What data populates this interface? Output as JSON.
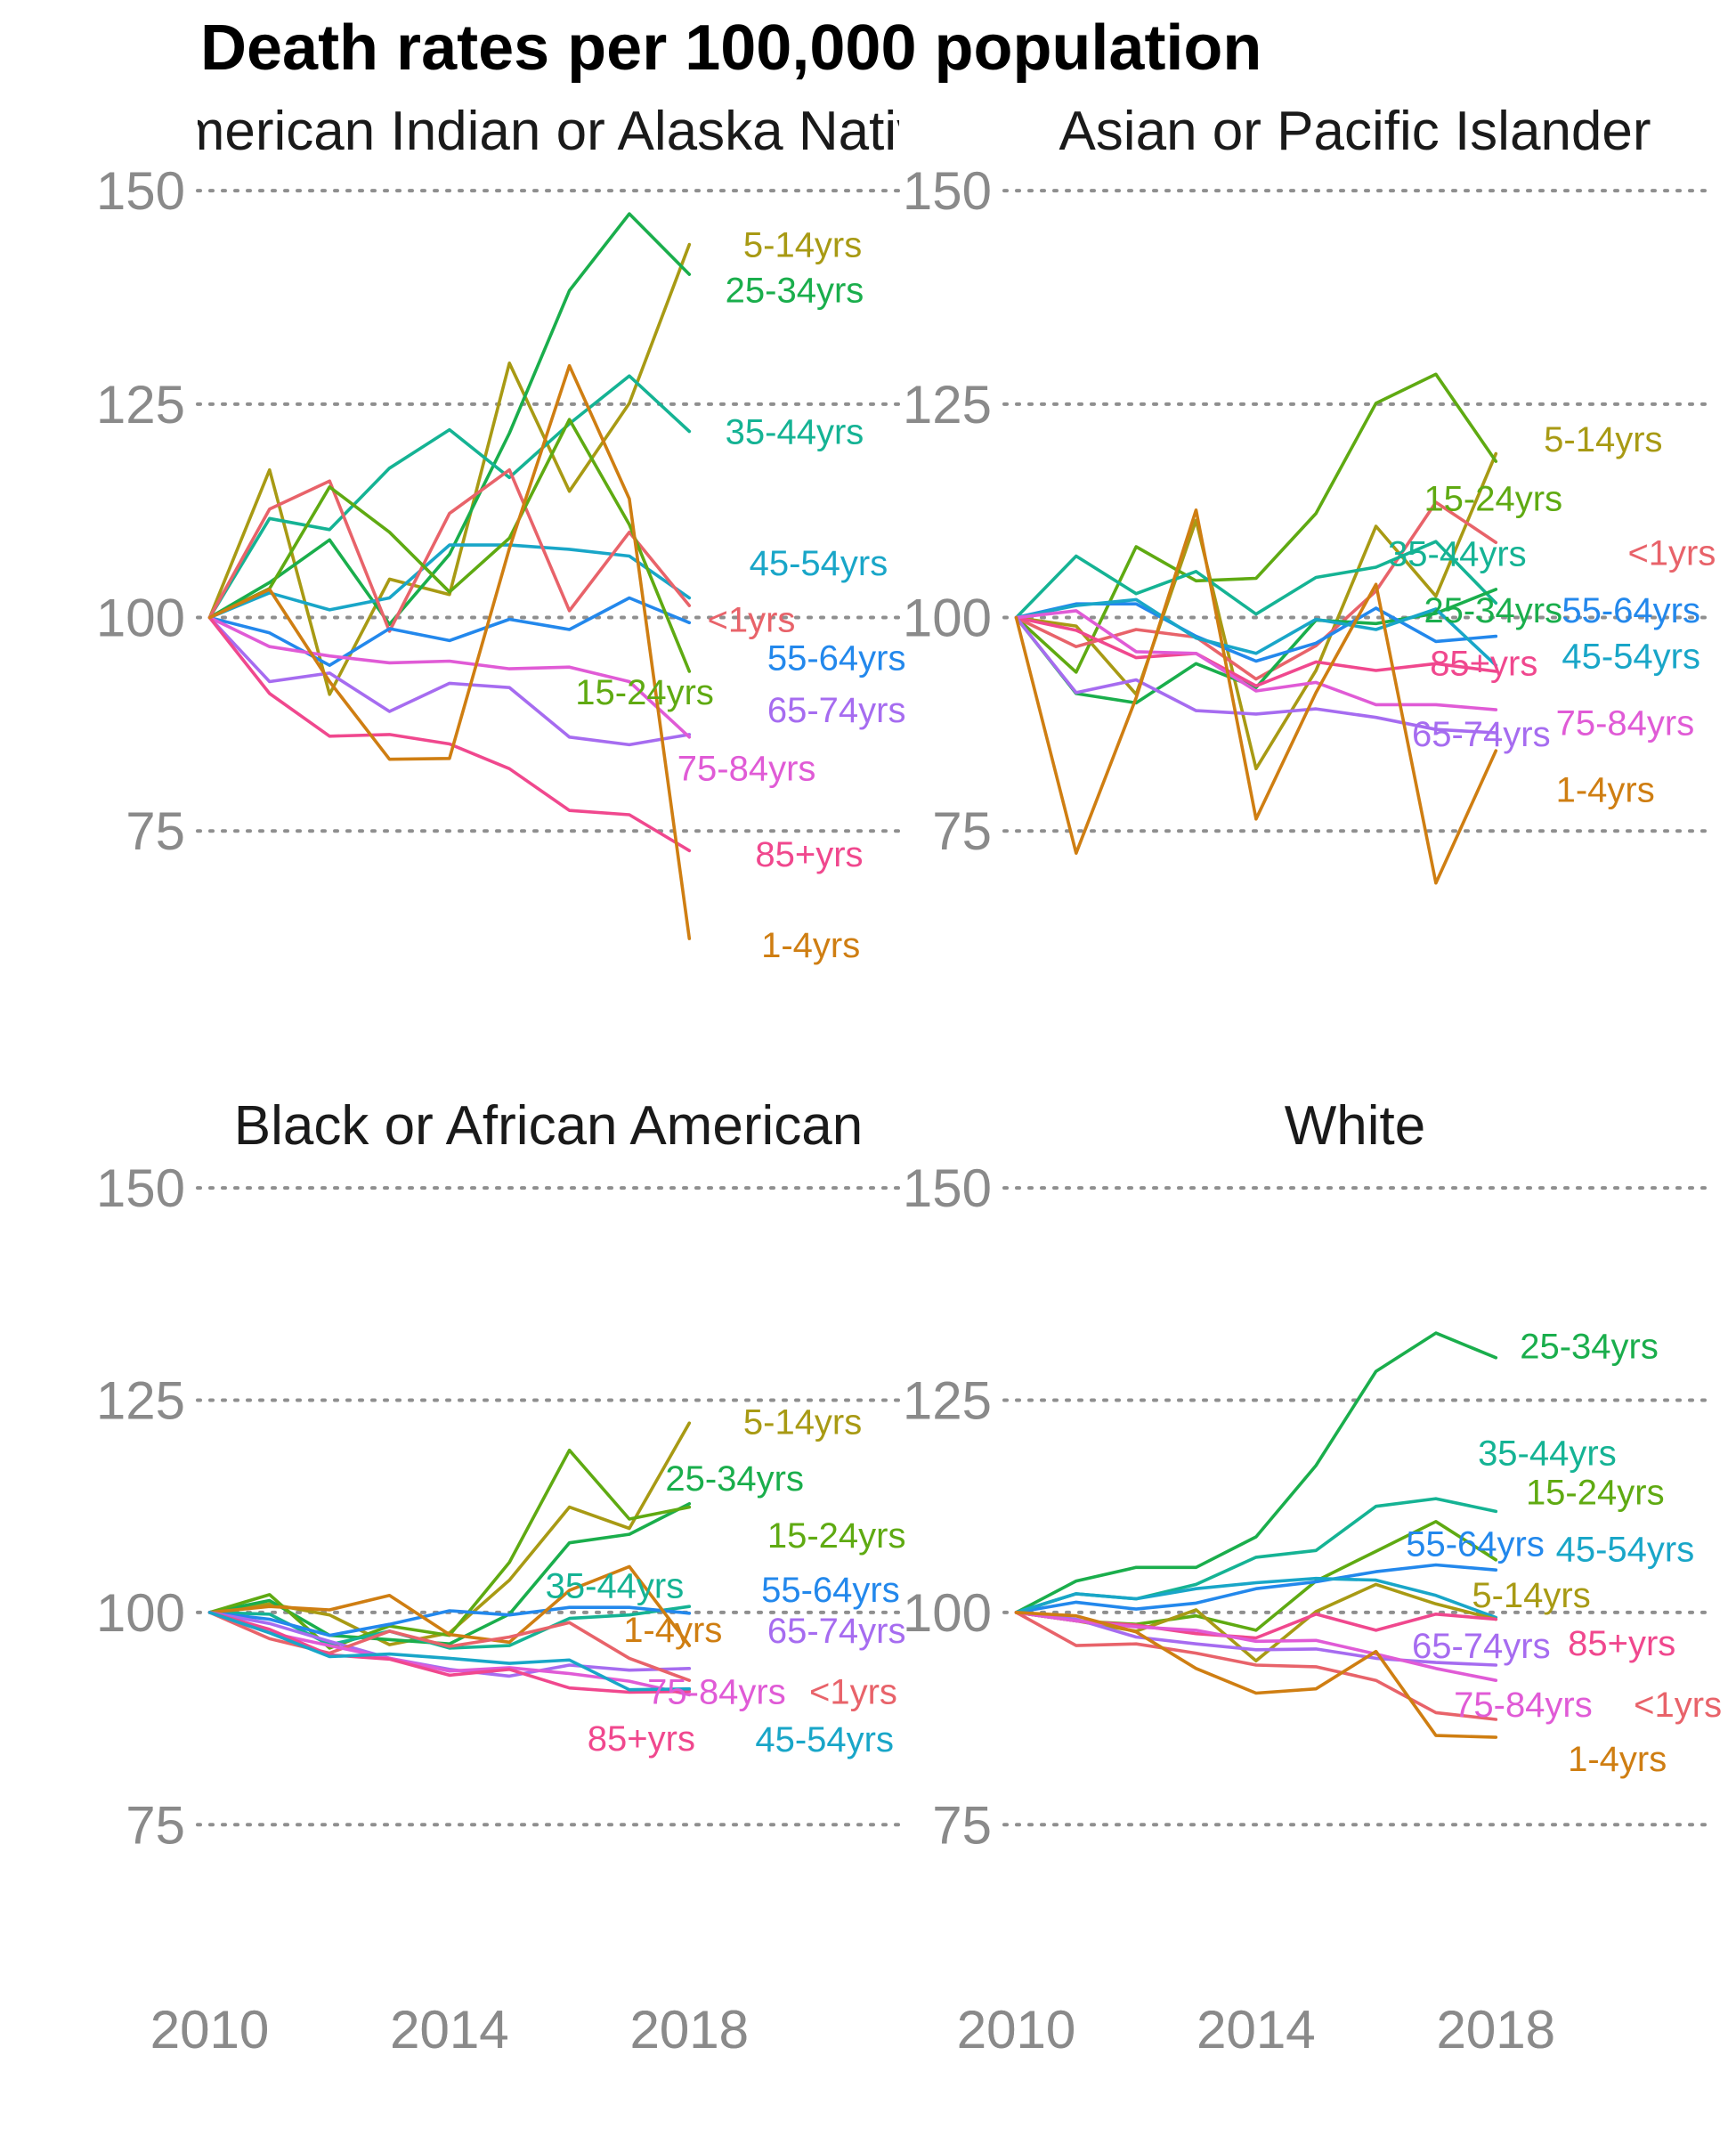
{
  "title": "Death rates per 100,000 population",
  "colors": {
    "<1yrs": "#E8636A",
    "1-4yrs": "#CF7E12",
    "5-14yrs": "#A89A14",
    "15-24yrs": "#5FAA12",
    "25-34yrs": "#1AAE4C",
    "35-44yrs": "#15B394",
    "45-54yrs": "#19A6C8",
    "55-64yrs": "#2388EC",
    "65-74yrs": "#A66CF0",
    "75-84yrs": "#E05BD6",
    "85+yrs": "#F0488E"
  },
  "chart_data": {
    "type": "line",
    "title": "Death rates per 100,000 population",
    "xlabel": "",
    "ylabel": "",
    "x": [
      2010,
      2011,
      2012,
      2013,
      2014,
      2015,
      2016,
      2017,
      2018
    ],
    "xticks": [
      "2010",
      "2014",
      "2018"
    ],
    "yticks": [
      "75",
      "100",
      "125",
      "150"
    ],
    "xlim": [
      2009.8,
      2021.5
    ],
    "ylim": [
      55,
      152
    ],
    "grid": "horizontal dotted",
    "legend": "none",
    "facets": [
      {
        "title": "American Indian or Alaska Native",
        "series": [
          {
            "name": "5-14yrs",
            "values": [
              100,
              117.3,
              91.0,
              104.5,
              102.7,
              129.8,
              114.8,
              125.1,
              143.7
            ]
          },
          {
            "name": "25-34yrs",
            "values": [
              100,
              104.1,
              109.1,
              99.2,
              107.4,
              121.6,
              138.3,
              147.3,
              140.2
            ]
          },
          {
            "name": "35-44yrs",
            "values": [
              100,
              111.6,
              110.3,
              117.5,
              122.0,
              116.4,
              122.7,
              128.3,
              121.8
            ]
          },
          {
            "name": "45-54yrs",
            "values": [
              100,
              102.9,
              100.9,
              102.3,
              108.5,
              108.5,
              108.0,
              107.2,
              102.3
            ]
          },
          {
            "name": "<1yrs",
            "values": [
              100,
              112.7,
              116.0,
              98.4,
              112.2,
              117.3,
              100.8,
              110.0,
              101.4
            ]
          },
          {
            "name": "55-64yrs",
            "values": [
              100,
              98.2,
              94.4,
              98.7,
              97.3,
              99.8,
              98.6,
              102.3,
              99.4
            ]
          },
          {
            "name": "15-24yrs",
            "values": [
              100,
              103.4,
              115.3,
              110.0,
              103.0,
              109.3,
              123.2,
              110.9,
              93.7
            ]
          },
          {
            "name": "65-74yrs",
            "values": [
              100,
              92.5,
              93.5,
              89.0,
              92.3,
              91.8,
              86.0,
              85.1,
              86.3
            ]
          },
          {
            "name": "75-84yrs",
            "values": [
              100,
              96.6,
              95.5,
              94.7,
              94.9,
              94.0,
              94.2,
              92.5,
              86.0
            ]
          },
          {
            "name": "85+yrs",
            "values": [
              100,
              91.1,
              86.1,
              86.3,
              85.2,
              82.3,
              77.4,
              76.9,
              72.7
            ]
          },
          {
            "name": "1-4yrs",
            "values": [
              100,
              103.3,
              92.5,
              83.4,
              83.5,
              108.1,
              129.5,
              113.9,
              62.4
            ]
          }
        ]
      },
      {
        "title": "Asian or Pacific Islander",
        "series": [
          {
            "name": "5-14yrs",
            "values": [
              100,
              99.0,
              91.0,
              111.4,
              82.3,
              93.8,
              110.7,
              102.5,
              119.2
            ]
          },
          {
            "name": "15-24yrs",
            "values": [
              100,
              93.6,
              108.3,
              104.3,
              104.6,
              112.2,
              125.1,
              128.5,
              118.3
            ]
          },
          {
            "name": "<1yrs",
            "values": [
              100,
              96.6,
              98.6,
              97.7,
              92.8,
              96.7,
              103.1,
              113.5,
              108.8
            ]
          },
          {
            "name": "35-44yrs",
            "values": [
              100,
              107.2,
              102.8,
              105.4,
              100.4,
              104.7,
              105.9,
              108.9,
              101.7
            ]
          },
          {
            "name": "25-34yrs",
            "values": [
              100,
              91.1,
              90.0,
              94.6,
              91.8,
              99.7,
              99.3,
              100.5,
              103.3
            ]
          },
          {
            "name": "55-64yrs",
            "values": [
              100,
              101.6,
              101.6,
              97.8,
              94.9,
              97.0,
              101.1,
              97.2,
              97.8
            ]
          },
          {
            "name": "45-54yrs",
            "values": [
              100,
              101.4,
              102.1,
              97.6,
              95.8,
              99.8,
              98.6,
              101.0,
              94.4
            ]
          },
          {
            "name": "85+yrs",
            "values": [
              100,
              98.5,
              95.3,
              95.8,
              92.0,
              94.8,
              93.8,
              94.6,
              93.7
            ]
          },
          {
            "name": "75-84yrs",
            "values": [
              100,
              100.8,
              96.0,
              95.8,
              91.4,
              92.4,
              89.8,
              89.8,
              89.2
            ]
          },
          {
            "name": "65-74yrs",
            "values": [
              100,
              91.2,
              92.7,
              89.1,
              88.7,
              89.3,
              88.3,
              86.9,
              86.5
            ]
          },
          {
            "name": "1-4yrs",
            "values": [
              100,
              72.4,
              90.6,
              112.6,
              76.4,
              91.2,
              103.9,
              68.9,
              84.4
            ]
          }
        ]
      },
      {
        "title": "Black or African American",
        "series": [
          {
            "name": "5-14yrs",
            "values": [
              100,
              101.0,
              99.7,
              96.2,
              97.6,
              103.8,
              112.4,
              109.9,
              122.3
            ]
          },
          {
            "name": "25-34yrs",
            "values": [
              100,
              101.4,
              97.3,
              96.8,
              96.3,
              99.8,
              108.2,
              109.2,
              112.8
            ]
          },
          {
            "name": "15-24yrs",
            "values": [
              100,
              102.1,
              95.8,
              98.4,
              97.3,
              105.9,
              119.1,
              111.0,
              112.4
            ]
          },
          {
            "name": "35-44yrs",
            "values": [
              100,
              99.8,
              96.2,
              97.8,
              95.8,
              96.1,
              99.3,
              99.7,
              100.7
            ]
          },
          {
            "name": "55-64yrs",
            "values": [
              100,
              99.2,
              97.3,
              98.6,
              100.2,
              99.7,
              100.6,
              100.6,
              99.9
            ]
          },
          {
            "name": "1-4yrs",
            "values": [
              100,
              100.7,
              100.3,
              102.0,
              97.4,
              96.5,
              102.6,
              105.4,
              96.1
            ]
          },
          {
            "name": "65-74yrs",
            "values": [
              100,
              98.7,
              96.6,
              94.6,
              93.3,
              92.5,
              93.8,
              93.2,
              93.4
            ]
          },
          {
            "name": "<1yrs",
            "values": [
              100,
              96.9,
              95.2,
              97.8,
              96.0,
              97.1,
              98.8,
              94.6,
              92.0
            ]
          },
          {
            "name": "75-84yrs",
            "values": [
              100,
              97.6,
              96.1,
              94.6,
              93.1,
              93.5,
              92.8,
              91.9,
              90.3
            ]
          },
          {
            "name": "85+yrs",
            "values": [
              100,
              98.0,
              95.0,
              94.5,
              92.6,
              93.3,
              91.1,
              90.6,
              90.7
            ]
          },
          {
            "name": "45-54yrs",
            "values": [
              100,
              97.6,
              94.8,
              95.1,
              94.6,
              94.0,
              94.4,
              90.9,
              91.0
            ]
          }
        ]
      },
      {
        "title": "White",
        "series": [
          {
            "name": "25-34yrs",
            "values": [
              100,
              103.7,
              105.3,
              105.3,
              108.9,
              117.3,
              128.4,
              132.9,
              130.0
            ]
          },
          {
            "name": "35-44yrs",
            "values": [
              100,
              102.2,
              101.6,
              103.3,
              106.5,
              107.3,
              112.5,
              113.4,
              111.9
            ]
          },
          {
            "name": "15-24yrs",
            "values": [
              100,
              99.0,
              98.6,
              99.6,
              97.9,
              103.7,
              107.2,
              110.7,
              106.2
            ]
          },
          {
            "name": "55-64yrs",
            "values": [
              100,
              101.2,
              100.4,
              101.1,
              102.8,
              103.6,
              104.8,
              105.6,
              105.0
            ]
          },
          {
            "name": "45-54yrs",
            "values": [
              100,
              102.2,
              101.6,
              102.8,
              103.5,
              104.0,
              103.8,
              102.0,
              99.4
            ]
          },
          {
            "name": "5-14yrs",
            "values": [
              100,
              99.0,
              97.8,
              100.3,
              94.3,
              100.1,
              103.3,
              101.0,
              99.2
            ]
          },
          {
            "name": "85+yrs",
            "values": [
              100,
              99.0,
              98.5,
              97.5,
              97.0,
              99.8,
              97.9,
              99.8,
              99.2
            ]
          },
          {
            "name": "65-74yrs",
            "values": [
              100,
              99.2,
              97.1,
              96.3,
              95.6,
              95.7,
              94.6,
              94.1,
              93.8
            ]
          },
          {
            "name": "75-84yrs",
            "values": [
              100,
              99.0,
              98.3,
              97.9,
              96.6,
              96.7,
              95.1,
              93.4,
              92.0
            ]
          },
          {
            "name": "<1yrs",
            "values": [
              100,
              96.1,
              96.3,
              95.2,
              93.8,
              93.6,
              92.0,
              88.2,
              87.4
            ]
          },
          {
            "name": "1-4yrs",
            "values": [
              100,
              99.6,
              97.7,
              93.4,
              90.5,
              91.0,
              95.4,
              85.5,
              85.3
            ]
          }
        ]
      }
    ],
    "labels": [
      [
        {
          "text": "5-14yrs",
          "series": "5-14yrs",
          "x": 2018.9,
          "y": 143.7
        },
        {
          "text": "25-34yrs",
          "series": "25-34yrs",
          "x": 2018.6,
          "y": 138.4
        },
        {
          "text": "35-44yrs",
          "series": "35-44yrs",
          "x": 2018.6,
          "y": 121.8
        },
        {
          "text": "45-54yrs",
          "series": "45-54yrs",
          "x": 2019.0,
          "y": 106.4
        },
        {
          "text": "<1yrs",
          "series": "<1yrs",
          "x": 2018.3,
          "y": 99.8
        },
        {
          "text": "55-64yrs",
          "series": "55-64yrs",
          "x": 2019.3,
          "y": 95.3
        },
        {
          "text": "15-24yrs",
          "series": "15-24yrs",
          "x": 2016.1,
          "y": 91.3
        },
        {
          "text": "65-74yrs",
          "series": "65-74yrs",
          "x": 2019.3,
          "y": 89.2
        },
        {
          "text": "75-84yrs",
          "series": "75-84yrs",
          "x": 2017.8,
          "y": 82.4
        },
        {
          "text": "85+yrs",
          "series": "85+yrs",
          "x": 2019.1,
          "y": 72.3
        },
        {
          "text": "1-4yrs",
          "series": "1-4yrs",
          "x": 2019.2,
          "y": 61.7
        }
      ],
      [
        {
          "text": "5-14yrs",
          "series": "5-14yrs",
          "x": 2018.8,
          "y": 120.9
        },
        {
          "text": "15-24yrs",
          "series": "15-24yrs",
          "x": 2016.8,
          "y": 114.0
        },
        {
          "text": "<1yrs",
          "series": "<1yrs",
          "x": 2020.2,
          "y": 107.6
        },
        {
          "text": "35-44yrs",
          "series": "35-44yrs",
          "x": 2016.2,
          "y": 107.5
        },
        {
          "text": "25-34yrs",
          "series": "25-34yrs",
          "x": 2016.8,
          "y": 100.9
        },
        {
          "text": "55-64yrs",
          "series": "55-64yrs",
          "x": 2019.1,
          "y": 100.9
        },
        {
          "text": "45-54yrs",
          "series": "45-54yrs",
          "x": 2019.1,
          "y": 95.5
        },
        {
          "text": "85+yrs",
          "series": "85+yrs",
          "x": 2016.9,
          "y": 94.7
        },
        {
          "text": "75-84yrs",
          "series": "75-84yrs",
          "x": 2019.0,
          "y": 87.7
        },
        {
          "text": "65-74yrs",
          "series": "65-74yrs",
          "x": 2016.6,
          "y": 86.4
        },
        {
          "text": "1-4yrs",
          "series": "1-4yrs",
          "x": 2019.0,
          "y": 79.9
        }
      ],
      [
        {
          "text": "5-14yrs",
          "series": "5-14yrs",
          "x": 2018.9,
          "y": 122.5
        },
        {
          "text": "25-34yrs",
          "series": "25-34yrs",
          "x": 2017.6,
          "y": 115.8
        },
        {
          "text": "15-24yrs",
          "series": "15-24yrs",
          "x": 2019.3,
          "y": 109.1
        },
        {
          "text": "35-44yrs",
          "series": "35-44yrs",
          "x": 2015.6,
          "y": 103.2
        },
        {
          "text": "55-64yrs",
          "series": "55-64yrs",
          "x": 2019.2,
          "y": 102.7
        },
        {
          "text": "1-4yrs",
          "series": "1-4yrs",
          "x": 2016.9,
          "y": 98.0
        },
        {
          "text": "65-74yrs",
          "series": "65-74yrs",
          "x": 2019.3,
          "y": 97.9
        },
        {
          "text": "<1yrs",
          "series": "<1yrs",
          "x": 2020.0,
          "y": 90.7
        },
        {
          "text": "75-84yrs",
          "series": "75-84yrs",
          "x": 2017.3,
          "y": 90.7
        },
        {
          "text": "85+yrs",
          "series": "85+yrs",
          "x": 2016.3,
          "y": 85.2
        },
        {
          "text": "45-54yrs",
          "series": "45-54yrs",
          "x": 2019.1,
          "y": 85.1
        }
      ],
      [
        {
          "text": "25-34yrs",
          "series": "25-34yrs",
          "x": 2018.4,
          "y": 131.4
        },
        {
          "text": "35-44yrs",
          "series": "35-44yrs",
          "x": 2017.7,
          "y": 118.8
        },
        {
          "text": "15-24yrs",
          "series": "15-24yrs",
          "x": 2018.5,
          "y": 114.2
        },
        {
          "text": "55-64yrs",
          "series": "55-64yrs",
          "x": 2016.5,
          "y": 108.1
        },
        {
          "text": "45-54yrs",
          "series": "45-54yrs",
          "x": 2019.0,
          "y": 107.5
        },
        {
          "text": "5-14yrs",
          "series": "5-14yrs",
          "x": 2017.6,
          "y": 102.1
        },
        {
          "text": "85+yrs",
          "series": "85+yrs",
          "x": 2019.2,
          "y": 96.4
        },
        {
          "text": "65-74yrs",
          "series": "65-74yrs",
          "x": 2016.6,
          "y": 96.1
        },
        {
          "text": "75-84yrs",
          "series": "75-84yrs",
          "x": 2017.3,
          "y": 89.2
        },
        {
          "text": "<1yrs",
          "series": "<1yrs",
          "x": 2020.3,
          "y": 89.2
        },
        {
          "text": "1-4yrs",
          "series": "1-4yrs",
          "x": 2019.2,
          "y": 82.8
        }
      ]
    ]
  }
}
